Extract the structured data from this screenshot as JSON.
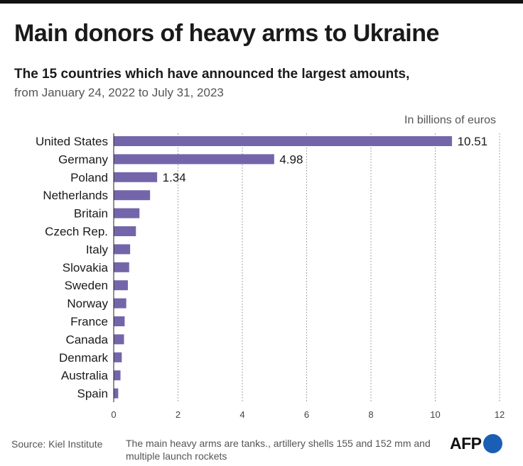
{
  "title": "Main donors of heavy arms to Ukraine",
  "subtitle": "The 15 countries which have announced the largest amounts,",
  "subtitle2": "from January 24, 2022 to July 31, 2023",
  "unit_label": "In billions of euros",
  "source": "Source: Kiel Institute",
  "note": "The main heavy arms are tanks., artillery shells 155 and 152 mm and multiple launch rockets",
  "logo_text": "AFP",
  "colors": {
    "bar": "#7465ab",
    "logo_dot": "#1b5fb4"
  },
  "chart_data": {
    "type": "bar",
    "orientation": "horizontal",
    "categories": [
      "United States",
      "Germany",
      "Poland",
      "Netherlands",
      "Britain",
      "Czech Rep.",
      "Italy",
      "Slovakia",
      "Sweden",
      "Norway",
      "France",
      "Canada",
      "Denmark",
      "Australia",
      "Spain"
    ],
    "values": [
      10.51,
      4.98,
      1.34,
      1.12,
      0.79,
      0.68,
      0.5,
      0.47,
      0.43,
      0.38,
      0.33,
      0.31,
      0.24,
      0.2,
      0.13
    ],
    "data_labels": [
      "10.51",
      "4.98",
      "1.34",
      "",
      "",
      "",
      "",
      "",
      "",
      "",
      "",
      "",
      "",
      "",
      ""
    ],
    "xlim": [
      0,
      12
    ],
    "xticks": [
      0,
      2,
      4,
      6,
      8,
      10,
      12
    ],
    "grid": "vertical dotted"
  }
}
